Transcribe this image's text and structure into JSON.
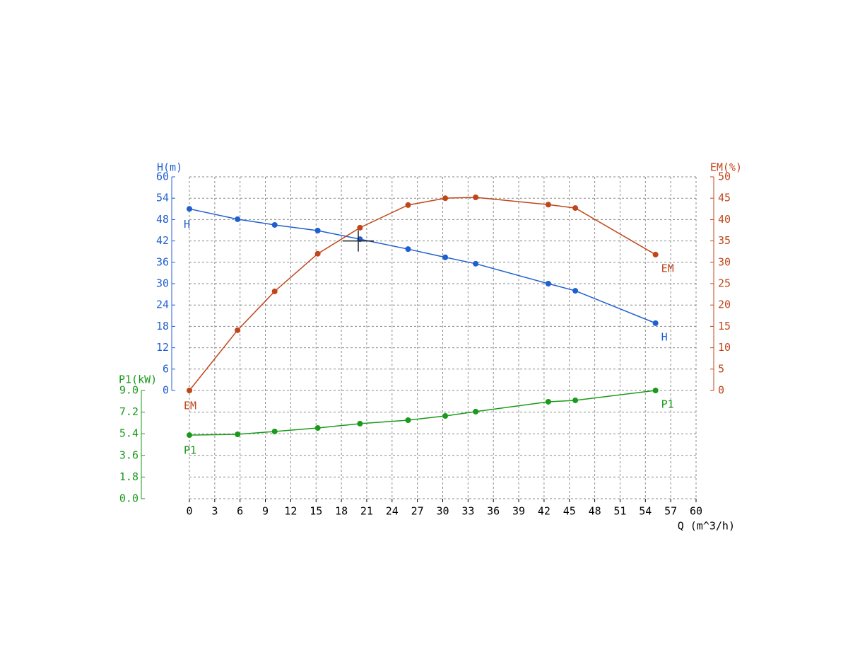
{
  "chart_data": {
    "type": "line",
    "xlabel": "Q (m^3/h)",
    "xlim": [
      0,
      60
    ],
    "xticks": [
      0,
      3,
      6,
      9,
      12,
      15,
      18,
      21,
      24,
      27,
      30,
      33,
      36,
      39,
      42,
      45,
      48,
      51,
      54,
      57,
      60
    ],
    "ylabel": "H(m)",
    "ylim": [
      0,
      60
    ],
    "yticks": [
      0,
      6,
      12,
      18,
      24,
      30,
      36,
      42,
      48,
      54,
      60
    ],
    "y2label": "EM(%)",
    "y2lim": [
      0,
      50
    ],
    "y2ticks": [
      0,
      5,
      10,
      15,
      20,
      25,
      30,
      35,
      40,
      45,
      50
    ],
    "y3label": "P1(kW)",
    "y3lim": [
      0,
      9
    ],
    "y3ticks": [
      {
        "value": 0,
        "label": "0.0"
      },
      1.8,
      3.6,
      5.4,
      7.2,
      {
        "value": 9,
        "label": "9.0"
      }
    ],
    "grid": true,
    "x": [
      0,
      5.7,
      10.1,
      15.2,
      20.2,
      25.9,
      30.3,
      33.9,
      42.5,
      45.7,
      55.2
    ],
    "series": [
      {
        "name": "H",
        "color": "#1f5fd0",
        "values": [
          51.0,
          48.1,
          46.5,
          44.9,
          42.5,
          39.7,
          37.4,
          35.6,
          30.0,
          28.0,
          18.9
        ]
      },
      {
        "name": "EM",
        "color": "#c0461a",
        "axis": "y2",
        "values": [
          0,
          14.1,
          23.2,
          32.0,
          38.1,
          43.4,
          45.0,
          45.2,
          43.5,
          42.7,
          31.8
        ]
      },
      {
        "name": "P1",
        "color": "#1a9a1a",
        "axis": "y3",
        "values": [
          5.29,
          5.35,
          5.59,
          5.88,
          6.24,
          6.53,
          6.88,
          7.24,
          8.06,
          8.18,
          9.0
        ]
      }
    ],
    "duty_point": {
      "x": 20,
      "y": 42
    }
  }
}
